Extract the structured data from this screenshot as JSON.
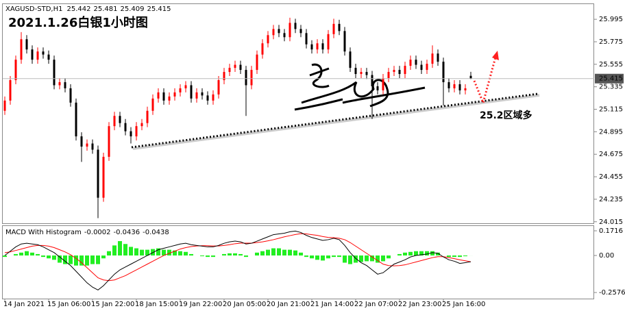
{
  "chart_data": [
    {
      "type": "candlestick",
      "symbol": "XAGUSD-STD,H1",
      "title": "2021.1.26白银1小时图",
      "annotation": "25.2区域多",
      "categories": [
        "14 Jan 2021",
        null,
        null,
        null,
        null,
        null,
        null,
        null,
        "15 Jan 06:00",
        null,
        null,
        null,
        null,
        null,
        null,
        null,
        "15 Jan 22:00",
        null,
        null,
        null,
        null,
        null,
        null,
        null,
        "18 Jan 15:00",
        null,
        null,
        null,
        null,
        null,
        null,
        null,
        "19 Jan 22:00",
        null,
        null,
        null,
        null,
        null,
        null,
        null,
        "20 Jan 05:00",
        null,
        null,
        null,
        null,
        null,
        null,
        null,
        "20 Jan 21:00",
        null,
        null,
        null,
        null,
        null,
        null,
        null,
        "21 Jan 14:00",
        null,
        null,
        null,
        null,
        null,
        null,
        null,
        "22 Jan 07:00",
        null,
        null,
        null,
        null,
        null,
        null,
        null,
        "22 Jan 23:00",
        null,
        null,
        null,
        null,
        null,
        null,
        null,
        "25 Jan 16:00",
        null,
        null,
        null,
        null,
        null
      ],
      "open": [
        25.1,
        25.2,
        25.4,
        25.6,
        25.8,
        25.7,
        25.6,
        25.68,
        25.65,
        25.6,
        25.35,
        25.38,
        25.32,
        25.18,
        24.85,
        24.75,
        24.78,
        24.72,
        24.25,
        24.65,
        24.95,
        25.05,
        24.98,
        24.9,
        24.85,
        24.95,
        24.98,
        25.1,
        25.22,
        25.28,
        25.2,
        25.24,
        25.28,
        25.32,
        25.35,
        25.22,
        25.28,
        25.25,
        25.2,
        25.26,
        25.4,
        25.48,
        25.52,
        25.55,
        25.5,
        25.35,
        25.5,
        25.65,
        25.76,
        25.84,
        25.9,
        25.86,
        25.82,
        25.96,
        25.9,
        25.86,
        25.75,
        25.7,
        25.76,
        25.7,
        25.85,
        25.95,
        25.88,
        25.68,
        25.52,
        25.46,
        25.48,
        25.45,
        25.34,
        25.3,
        25.42,
        25.48,
        25.5,
        25.46,
        25.54,
        25.6,
        25.55,
        25.5,
        25.56,
        25.66,
        25.58,
        25.38,
        25.32,
        25.36,
        25.3,
        25.442
      ],
      "high": [
        25.24,
        25.44,
        25.64,
        25.87,
        25.84,
        25.74,
        25.72,
        25.72,
        25.69,
        25.64,
        25.42,
        25.42,
        25.36,
        25.22,
        24.89,
        24.82,
        24.82,
        24.76,
        24.69,
        24.99,
        25.09,
        25.09,
        25.02,
        24.94,
        24.99,
        25.02,
        25.14,
        25.26,
        25.32,
        25.32,
        25.28,
        25.32,
        25.36,
        25.39,
        25.39,
        25.32,
        25.32,
        25.29,
        25.3,
        25.44,
        25.52,
        25.56,
        25.59,
        25.59,
        25.54,
        25.54,
        25.69,
        25.8,
        25.88,
        25.94,
        25.94,
        25.9,
        26.01,
        26.0,
        25.94,
        25.9,
        25.79,
        25.8,
        25.8,
        25.89,
        26.0,
        25.99,
        25.92,
        25.72,
        25.56,
        25.52,
        25.52,
        25.49,
        25.38,
        25.46,
        25.52,
        25.54,
        25.54,
        25.58,
        25.64,
        25.64,
        25.59,
        25.6,
        25.74,
        25.7,
        25.62,
        25.42,
        25.4,
        25.4,
        25.36,
        25.481
      ],
      "low": [
        25.06,
        25.16,
        25.36,
        25.56,
        25.66,
        25.56,
        25.56,
        25.61,
        25.56,
        25.31,
        25.31,
        25.28,
        25.14,
        24.81,
        24.6,
        24.71,
        24.68,
        24.05,
        24.21,
        24.61,
        24.91,
        24.94,
        24.86,
        24.78,
        24.81,
        24.91,
        24.94,
        25.06,
        25.18,
        25.16,
        25.16,
        25.2,
        25.24,
        25.28,
        25.18,
        25.18,
        25.21,
        25.16,
        25.16,
        25.22,
        25.36,
        25.44,
        25.48,
        25.46,
        25.05,
        25.31,
        25.46,
        25.61,
        25.72,
        25.8,
        25.82,
        25.78,
        25.78,
        25.86,
        25.82,
        25.71,
        25.66,
        25.66,
        25.66,
        25.66,
        25.81,
        25.84,
        25.64,
        25.48,
        25.42,
        25.42,
        25.41,
        25.02,
        25.26,
        25.26,
        25.38,
        25.44,
        25.42,
        25.42,
        25.5,
        25.51,
        25.46,
        25.46,
        25.52,
        25.54,
        25.15,
        25.28,
        25.28,
        25.26,
        25.26,
        25.409
      ],
      "close": [
        25.2,
        25.4,
        25.6,
        25.8,
        25.7,
        25.6,
        25.68,
        25.65,
        25.6,
        25.35,
        25.38,
        25.32,
        25.18,
        24.85,
        24.75,
        24.78,
        24.72,
        24.25,
        24.65,
        24.95,
        25.05,
        24.98,
        24.9,
        24.85,
        24.95,
        24.98,
        25.1,
        25.22,
        25.28,
        25.2,
        25.24,
        25.28,
        25.32,
        25.35,
        25.22,
        25.28,
        25.25,
        25.2,
        25.26,
        25.4,
        25.48,
        25.52,
        25.55,
        25.5,
        25.35,
        25.5,
        25.65,
        25.76,
        25.84,
        25.9,
        25.86,
        25.82,
        25.96,
        25.9,
        25.86,
        25.75,
        25.7,
        25.76,
        25.7,
        25.85,
        25.95,
        25.88,
        25.68,
        25.52,
        25.46,
        25.48,
        25.45,
        25.34,
        25.3,
        25.42,
        25.48,
        25.5,
        25.46,
        25.54,
        25.6,
        25.55,
        25.5,
        25.56,
        25.66,
        25.58,
        25.38,
        25.32,
        25.36,
        25.3,
        25.32,
        25.415
      ],
      "up_color": "#ff0000",
      "down_color": "#000000",
      "ylim": [
        24.0,
        26.13
      ],
      "yticks": [
        25.995,
        25.775,
        25.555,
        25.335,
        25.115,
        24.895,
        24.675,
        24.455,
        24.235,
        24.015
      ],
      "price_line": true
    },
    {
      "type": "macd",
      "title": "MACD With Histogram",
      "histogram": [
        -0.01,
        0.0,
        0.01,
        0.02,
        0.03,
        0.02,
        0.01,
        -0.01,
        -0.02,
        -0.03,
        -0.05,
        -0.06,
        -0.06,
        -0.07,
        -0.07,
        -0.07,
        -0.06,
        -0.06,
        -0.02,
        0.03,
        0.07,
        0.1,
        0.08,
        0.06,
        0.05,
        0.04,
        0.04,
        0.045,
        0.05,
        0.04,
        0.04,
        0.035,
        0.03,
        0.025,
        0.01,
        0.0,
        -0.005,
        -0.01,
        -0.01,
        0.0,
        0.01,
        0.015,
        0.015,
        0.01,
        -0.01,
        0.0,
        0.02,
        0.03,
        0.04,
        0.05,
        0.05,
        0.04,
        0.04,
        0.035,
        0.02,
        -0.01,
        -0.02,
        -0.03,
        -0.035,
        -0.02,
        -0.01,
        -0.01,
        -0.05,
        -0.06,
        -0.05,
        -0.045,
        -0.04,
        -0.04,
        -0.05,
        -0.04,
        -0.02,
        0.0,
        0.01,
        0.02,
        0.025,
        0.03,
        0.03,
        0.03,
        0.03,
        0.02,
        0.0,
        -0.01,
        -0.01,
        -0.01,
        -0.005,
        -0.0002
      ],
      "macd": [
        0.0,
        0.03,
        0.06,
        0.08,
        0.085,
        0.08,
        0.075,
        0.06,
        0.04,
        0.02,
        -0.01,
        -0.04,
        -0.07,
        -0.11,
        -0.15,
        -0.19,
        -0.22,
        -0.24,
        -0.21,
        -0.17,
        -0.13,
        -0.1,
        -0.08,
        -0.06,
        -0.04,
        -0.02,
        0.0,
        0.02,
        0.04,
        0.05,
        0.06,
        0.07,
        0.08,
        0.085,
        0.075,
        0.07,
        0.065,
        0.06,
        0.06,
        0.07,
        0.085,
        0.095,
        0.1,
        0.095,
        0.08,
        0.085,
        0.1,
        0.115,
        0.13,
        0.145,
        0.15,
        0.155,
        0.165,
        0.17,
        0.16,
        0.14,
        0.125,
        0.115,
        0.105,
        0.11,
        0.12,
        0.11,
        0.07,
        0.02,
        -0.02,
        -0.05,
        -0.07,
        -0.1,
        -0.13,
        -0.12,
        -0.09,
        -0.06,
        -0.045,
        -0.03,
        -0.01,
        0.0,
        0.005,
        0.01,
        0.02,
        0.015,
        -0.01,
        -0.03,
        -0.04,
        -0.055,
        -0.05,
        -0.0436
      ],
      "signal": [
        0.02,
        0.025,
        0.035,
        0.045,
        0.055,
        0.065,
        0.07,
        0.07,
        0.065,
        0.055,
        0.04,
        0.025,
        0.005,
        -0.02,
        -0.05,
        -0.085,
        -0.12,
        -0.155,
        -0.17,
        -0.175,
        -0.17,
        -0.155,
        -0.14,
        -0.12,
        -0.1,
        -0.08,
        -0.06,
        -0.04,
        -0.02,
        0.0,
        0.015,
        0.03,
        0.045,
        0.055,
        0.062,
        0.066,
        0.068,
        0.068,
        0.066,
        0.066,
        0.07,
        0.075,
        0.082,
        0.086,
        0.086,
        0.086,
        0.09,
        0.095,
        0.102,
        0.11,
        0.12,
        0.13,
        0.138,
        0.146,
        0.152,
        0.15,
        0.145,
        0.14,
        0.132,
        0.126,
        0.124,
        0.12,
        0.11,
        0.09,
        0.065,
        0.04,
        0.015,
        -0.01,
        -0.035,
        -0.06,
        -0.07,
        -0.072,
        -0.07,
        -0.065,
        -0.055,
        -0.045,
        -0.035,
        -0.025,
        -0.015,
        -0.008,
        -0.008,
        -0.015,
        -0.022,
        -0.03,
        -0.037,
        -0.0438
      ],
      "histogram_color": "#22ee22",
      "macd_color": "#000000",
      "signal_color": "#ff0000",
      "ylim": [
        -0.3,
        0.205
      ],
      "yticks": [
        0.1716,
        {
          "value": 0,
          "label": "0.00"
        },
        -0.2576
      ]
    }
  ]
}
